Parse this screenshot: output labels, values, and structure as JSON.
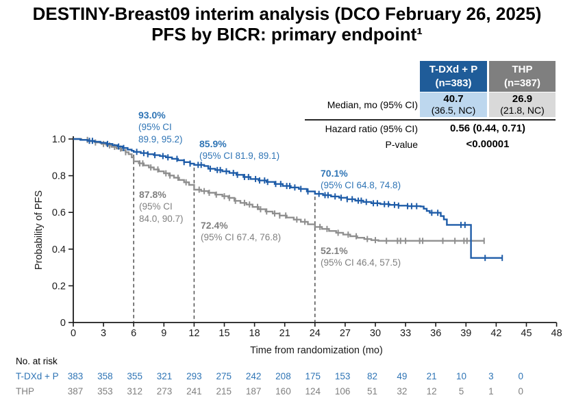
{
  "title": {
    "line1": "DESTINY-Breast09 interim analysis (DCO February 26, 2025)",
    "line2": "PFS by BICR: primary endpoint¹"
  },
  "stats_table": {
    "columns": [
      {
        "line1": "T-DXd + P",
        "line2": "(n=383)",
        "header_color": "#1F5C99",
        "cell_color": "#BDD7EE"
      },
      {
        "line1": "THP",
        "line2": "(n=387)",
        "header_color": "#7F7F7F",
        "cell_color": "#D9D9D9"
      }
    ],
    "median": {
      "label": "Median, mo (95% CI)",
      "values": [
        {
          "main": "40.7",
          "ci": "(36.5, NC)"
        },
        {
          "main": "26.9",
          "ci": "(21.8, NC)"
        }
      ]
    },
    "hazard": {
      "label": "Hazard ratio (95% CI)",
      "value": "0.56 (0.44, 0.71)"
    },
    "pvalue": {
      "label": "P-value",
      "value": "<0.00001"
    }
  },
  "chart_data": {
    "type": "line",
    "subtype": "kaplan-meier-step",
    "xlabel": "Time from randomization (mo)",
    "ylabel": "Probability of PFS",
    "xlim": [
      0,
      48
    ],
    "ylim": [
      0,
      1
    ],
    "x_ticks": [
      0,
      3,
      6,
      9,
      12,
      15,
      18,
      21,
      24,
      27,
      30,
      33,
      36,
      39,
      42,
      45,
      48
    ],
    "y_ticks": [
      0,
      0.2,
      0.4,
      0.6,
      0.8,
      1.0
    ],
    "y_tick_labels": [
      "0",
      "0.2",
      "0.4",
      "0.6",
      "0.8",
      "1.0"
    ],
    "reference_line_months": [
      6,
      12,
      24
    ],
    "grid": false,
    "series": [
      {
        "name": "T-DXd + P",
        "color": "#1E5CA8",
        "text_color": "#2E74B5",
        "steps": [
          [
            0,
            1.0
          ],
          [
            0.7,
            0.995
          ],
          [
            1.4,
            0.99
          ],
          [
            2.1,
            0.985
          ],
          [
            2.7,
            0.979
          ],
          [
            3.3,
            0.973
          ],
          [
            3.9,
            0.966
          ],
          [
            4.4,
            0.959
          ],
          [
            4.9,
            0.951
          ],
          [
            5.4,
            0.942
          ],
          [
            5.8,
            0.936
          ],
          [
            6.0,
            0.93
          ],
          [
            6.7,
            0.923
          ],
          [
            7.4,
            0.917
          ],
          [
            8.0,
            0.912
          ],
          [
            8.6,
            0.907
          ],
          [
            9.2,
            0.9
          ],
          [
            9.8,
            0.892
          ],
          [
            10.4,
            0.884
          ],
          [
            11.0,
            0.874
          ],
          [
            11.6,
            0.866
          ],
          [
            12.0,
            0.859
          ],
          [
            13.0,
            0.853
          ],
          [
            13.4,
            0.838
          ],
          [
            14.1,
            0.831
          ],
          [
            14.8,
            0.824
          ],
          [
            15.5,
            0.815
          ],
          [
            16.2,
            0.805
          ],
          [
            16.9,
            0.793
          ],
          [
            17.6,
            0.782
          ],
          [
            18.4,
            0.774
          ],
          [
            19.2,
            0.766
          ],
          [
            20.0,
            0.755
          ],
          [
            20.8,
            0.744
          ],
          [
            21.6,
            0.736
          ],
          [
            22.4,
            0.728
          ],
          [
            23.2,
            0.714
          ],
          [
            24.0,
            0.701
          ],
          [
            24.8,
            0.694
          ],
          [
            25.6,
            0.687
          ],
          [
            26.4,
            0.68
          ],
          [
            27.2,
            0.672
          ],
          [
            28.0,
            0.664
          ],
          [
            28.8,
            0.657
          ],
          [
            29.6,
            0.65
          ],
          [
            30.5,
            0.645
          ],
          [
            31.4,
            0.641
          ],
          [
            32.3,
            0.637
          ],
          [
            33.2,
            0.634
          ],
          [
            34.5,
            0.632
          ],
          [
            34.8,
            0.62
          ],
          [
            35.1,
            0.608
          ],
          [
            35.4,
            0.598
          ],
          [
            36.5,
            0.58
          ],
          [
            36.8,
            0.562
          ],
          [
            37.1,
            0.532
          ],
          [
            39.5,
            0.352
          ],
          [
            42.6,
            0.352
          ]
        ],
        "censor_months": [
          1.6,
          1.9,
          3.4,
          4.5,
          5.0,
          6.3,
          7.0,
          7.4,
          8.1,
          8.9,
          9.4,
          10.3,
          11.0,
          11.6,
          12.4,
          12.7,
          13.6,
          14.3,
          14.6,
          15.2,
          15.9,
          16.3,
          17.0,
          17.4,
          18.1,
          18.5,
          19.0,
          19.3,
          20.1,
          20.6,
          21.2,
          21.5,
          22.0,
          22.6,
          23.3,
          24.4,
          25.0,
          25.3,
          26.0,
          26.6,
          27.2,
          27.7,
          28.3,
          28.6,
          29.1,
          29.8,
          30.2,
          30.9,
          31.3,
          31.9,
          32.3,
          33.2,
          33.6,
          34.1,
          35.6,
          36.2,
          38.5,
          38.9,
          40.9,
          42.6
        ],
        "landmark_estimates": [
          {
            "month": 6,
            "value_pct": 93.0,
            "ci": [
              89.9,
              95.2
            ]
          },
          {
            "month": 12,
            "value_pct": 85.9,
            "ci": [
              81.9,
              89.1
            ]
          },
          {
            "month": 24,
            "value_pct": 70.1,
            "ci": [
              64.8,
              74.8
            ]
          }
        ]
      },
      {
        "name": "THP",
        "color": "#8F8F8F",
        "text_color": "#7F7F7F",
        "steps": [
          [
            0,
            1.0
          ],
          [
            0.8,
            0.995
          ],
          [
            1.6,
            0.988
          ],
          [
            2.2,
            0.981
          ],
          [
            2.8,
            0.973
          ],
          [
            3.3,
            0.965
          ],
          [
            3.8,
            0.957
          ],
          [
            4.3,
            0.948
          ],
          [
            4.8,
            0.938
          ],
          [
            5.2,
            0.928
          ],
          [
            5.5,
            0.917
          ],
          [
            5.8,
            0.9
          ],
          [
            6.0,
            0.878
          ],
          [
            6.5,
            0.867
          ],
          [
            7.0,
            0.856
          ],
          [
            7.5,
            0.845
          ],
          [
            8.0,
            0.834
          ],
          [
            8.5,
            0.824
          ],
          [
            9.0,
            0.813
          ],
          [
            9.5,
            0.801
          ],
          [
            10.0,
            0.789
          ],
          [
            10.5,
            0.777
          ],
          [
            11.0,
            0.764
          ],
          [
            11.5,
            0.75
          ],
          [
            12.0,
            0.724
          ],
          [
            12.7,
            0.716
          ],
          [
            13.4,
            0.707
          ],
          [
            14.1,
            0.697
          ],
          [
            14.8,
            0.688
          ],
          [
            15.4,
            0.679
          ],
          [
            16.0,
            0.663
          ],
          [
            16.6,
            0.652
          ],
          [
            17.2,
            0.643
          ],
          [
            17.8,
            0.63
          ],
          [
            18.4,
            0.617
          ],
          [
            19.1,
            0.605
          ],
          [
            19.8,
            0.594
          ],
          [
            20.5,
            0.583
          ],
          [
            21.2,
            0.572
          ],
          [
            21.9,
            0.561
          ],
          [
            22.6,
            0.549
          ],
          [
            23.3,
            0.535
          ],
          [
            24.0,
            0.521
          ],
          [
            24.7,
            0.51
          ],
          [
            25.4,
            0.499
          ],
          [
            26.1,
            0.489
          ],
          [
            26.8,
            0.479
          ],
          [
            27.5,
            0.47
          ],
          [
            28.2,
            0.462
          ],
          [
            28.9,
            0.455
          ],
          [
            29.6,
            0.449
          ],
          [
            30.3,
            0.445
          ],
          [
            40.8,
            0.445
          ]
        ],
        "censor_months": [
          1.4,
          2.2,
          3.0,
          3.6,
          4.1,
          4.7,
          5.2,
          6.6,
          6.9,
          7.7,
          8.4,
          9.2,
          9.6,
          10.4,
          11.2,
          12.5,
          13.0,
          13.5,
          14.2,
          15.0,
          15.5,
          16.1,
          17.0,
          17.5,
          18.3,
          18.6,
          19.2,
          20.0,
          20.5,
          21.1,
          22.2,
          23.0,
          24.5,
          25.2,
          26.3,
          27.3,
          28.1,
          29.2,
          30.0,
          31.1,
          32.2,
          32.5,
          33.0,
          34.4,
          34.7,
          36.7,
          37.9,
          38.8,
          39.1,
          40.8
        ],
        "landmark_estimates": [
          {
            "month": 6,
            "value_pct": 87.8,
            "ci": [
              84.0,
              90.7
            ]
          },
          {
            "month": 12,
            "value_pct": 72.4,
            "ci": [
              67.4,
              76.8
            ]
          },
          {
            "month": 24,
            "value_pct": 52.1,
            "ci": [
              46.4,
              57.5
            ]
          }
        ]
      }
    ],
    "annotations": [
      {
        "series_index": 0,
        "month": 6,
        "lines": [
          "93.0%",
          "(95% CI",
          "89.9, 95.2)"
        ]
      },
      {
        "series_index": 0,
        "month": 12,
        "lines": [
          "85.9%",
          "(95% CI 81.9, 89.1)"
        ]
      },
      {
        "series_index": 0,
        "month": 24,
        "lines": [
          "70.1%",
          "(95% CI 64.8, 74.8)"
        ]
      },
      {
        "series_index": 1,
        "month": 6,
        "lines": [
          "87.8%",
          "(95% CI",
          "84.0, 90.7)"
        ]
      },
      {
        "series_index": 1,
        "month": 12,
        "lines": [
          "72.4%",
          "(95% CI 67.4, 76.8)"
        ]
      },
      {
        "series_index": 1,
        "month": 24,
        "lines": [
          "52.1%",
          "(95% CI 46.4, 57.5)"
        ]
      }
    ]
  },
  "risk_table": {
    "title": "No. at risk",
    "months": [
      0,
      3,
      6,
      9,
      12,
      15,
      18,
      21,
      24,
      27,
      30,
      33,
      36,
      39,
      42,
      45
    ],
    "rows": [
      {
        "label": "T-DXd + P",
        "color": "#2E74B5",
        "values": [
          383,
          358,
          355,
          321,
          293,
          275,
          242,
          208,
          175,
          153,
          82,
          49,
          21,
          10,
          3,
          0
        ]
      },
      {
        "label": "THP",
        "color": "#7F7F7F",
        "values": [
          387,
          353,
          312,
          273,
          241,
          215,
          187,
          160,
          124,
          106,
          51,
          32,
          12,
          5,
          1,
          0
        ]
      }
    ]
  },
  "colors": {
    "axis": "#1a1a1a",
    "reference_line": "#595959",
    "tdxd_curve": "#1E5CA8",
    "thp_curve": "#8F8F8F",
    "tdxd_header_bg": "#1F5C99",
    "thp_header_bg": "#7F7F7F",
    "tdxd_cell_bg": "#BDD7EE",
    "thp_cell_bg": "#D9D9D9"
  }
}
